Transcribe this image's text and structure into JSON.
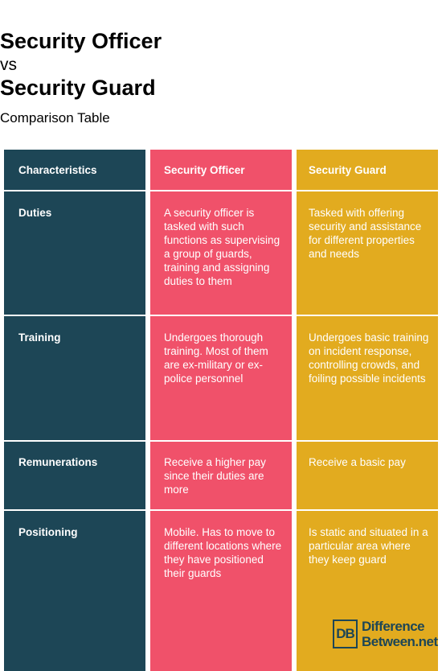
{
  "title_line1": "Security Officer",
  "vs": "vs",
  "title_line2": "Security Guard",
  "subtitle": "Comparison Table",
  "table": {
    "headers": [
      "Characteristics",
      "Security Officer",
      "Security Guard"
    ],
    "rows": [
      {
        "label": "Duties",
        "officer": "A security officer is tasked with such functions as supervising a group of guards, training and assigning duties to them",
        "guard": "Tasked with offering security and assistance for different properties and needs"
      },
      {
        "label": "Training",
        "officer": "Undergoes thorough training. Most of them are ex-military or ex-police personnel",
        "guard": "Undergoes basic training on incident response, controlling crowds, and foiling possible incidents"
      },
      {
        "label": "Remunerations",
        "officer": "Receive a higher pay since their duties are more",
        "guard": "Receive a basic pay"
      },
      {
        "label": "Positioning",
        "officer": "Mobile. Has to move to different locations where they have positioned their guards",
        "guard": "Is static and situated in a particular area where they keep guard"
      }
    ]
  },
  "logo": {
    "mark": "DB",
    "line1": "Difference",
    "line2": "Between.net"
  },
  "colors": {
    "characteristics_column": "#1d4656",
    "officer_column": "#f0516a",
    "guard_column": "#e2ab1f"
  }
}
